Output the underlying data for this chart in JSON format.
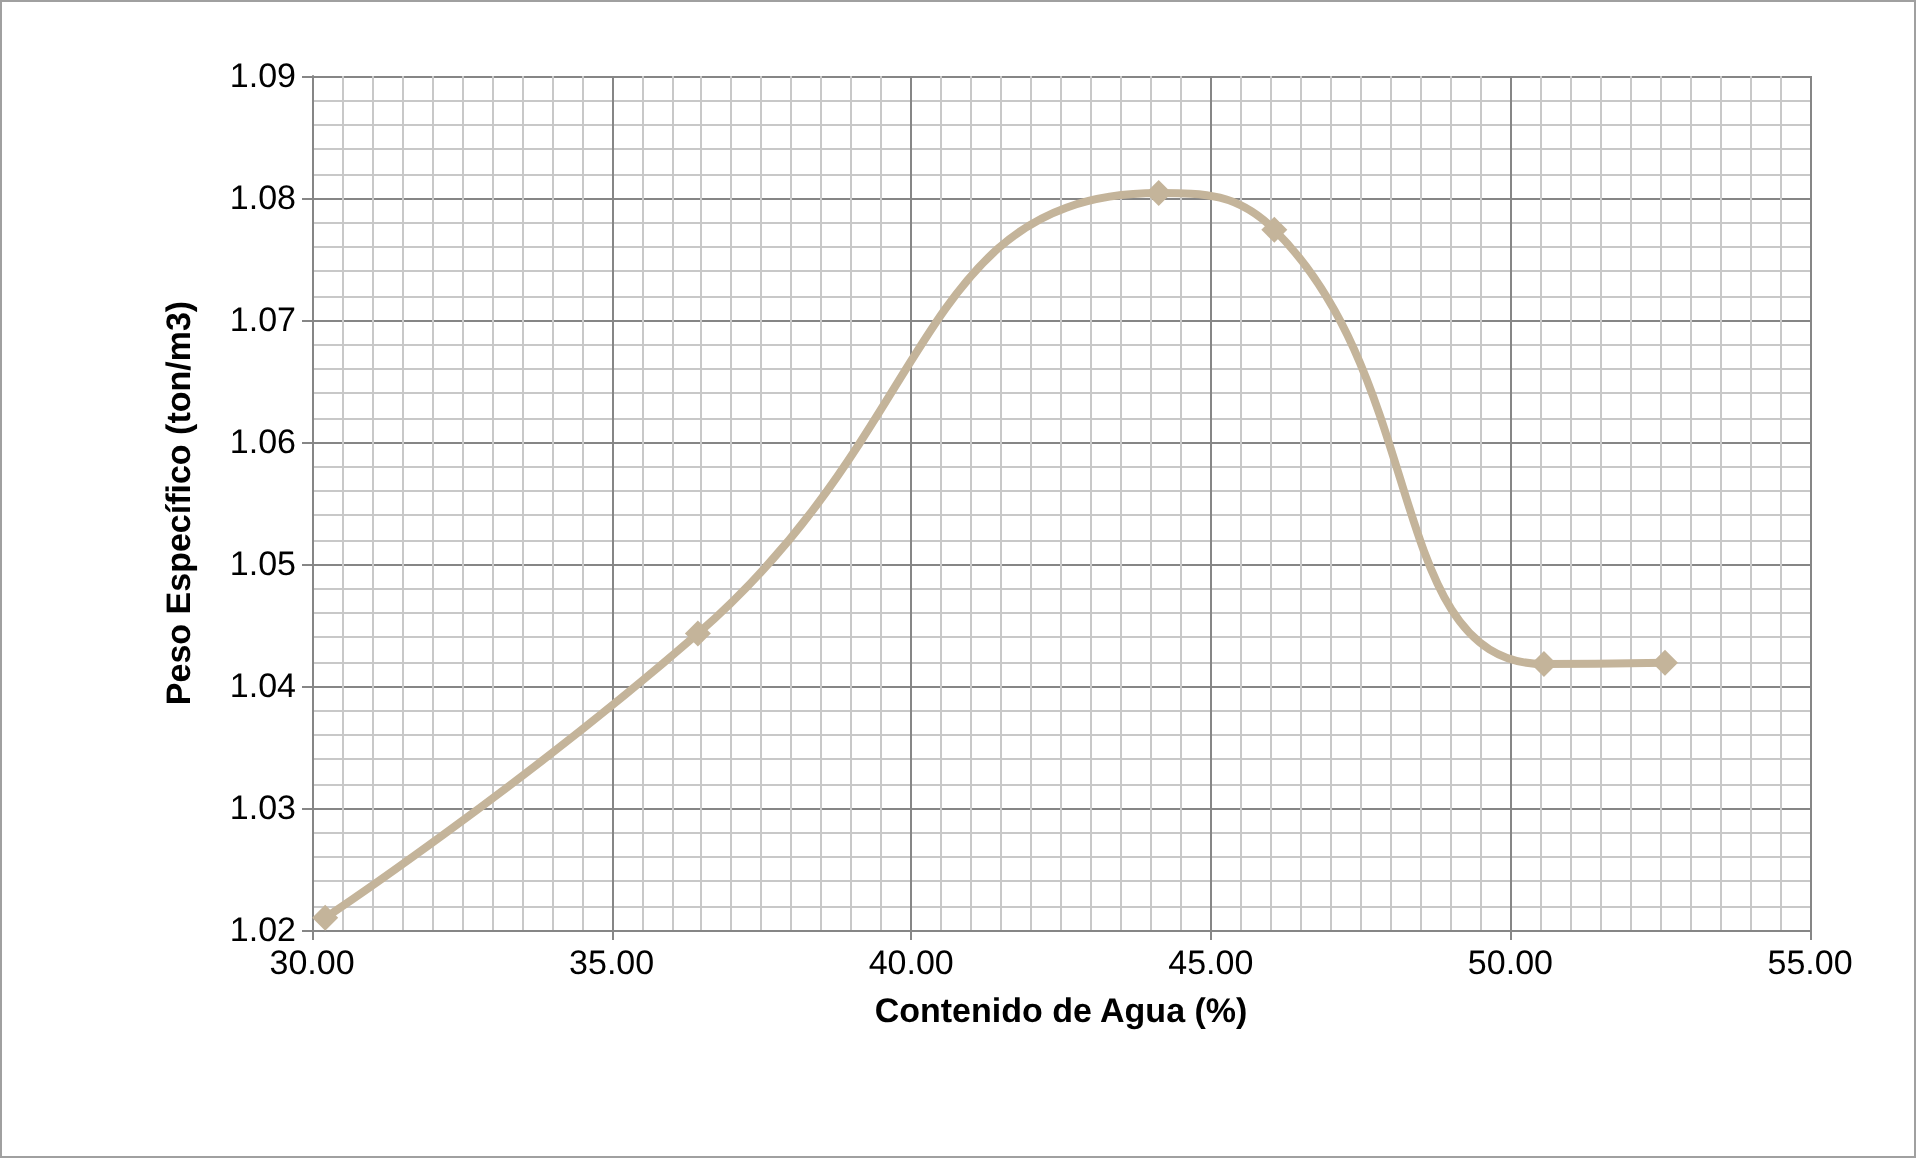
{
  "chart_data": {
    "type": "line",
    "xlabel": "Contenido de Agua (%)",
    "ylabel": "Peso Específico (ton/m3)",
    "x": [
      30.22,
      36.44,
      44.13,
      46.06,
      50.56,
      52.58
    ],
    "series": [
      {
        "color": "#c4b49a",
        "values": [
          1.021,
          1.0443,
          1.0804,
          1.0774,
          1.0418,
          1.0419
        ]
      }
    ],
    "xlim": [
      30,
      55
    ],
    "xticks": [
      {
        "value": 30,
        "label": "30.00"
      },
      {
        "value": 35,
        "label": "35.00"
      },
      {
        "value": 40,
        "label": "40.00"
      },
      {
        "value": 45,
        "label": "45.00"
      },
      {
        "value": 50,
        "label": "50.00"
      },
      {
        "value": 55,
        "label": "55.00"
      }
    ],
    "ylim": [
      1.02,
      1.09
    ],
    "yticks": [
      1.02,
      1.03,
      1.04,
      1.05,
      1.06,
      1.07,
      1.08,
      1.09
    ],
    "grid": true,
    "marker": "diamond",
    "line_style": "solid"
  }
}
